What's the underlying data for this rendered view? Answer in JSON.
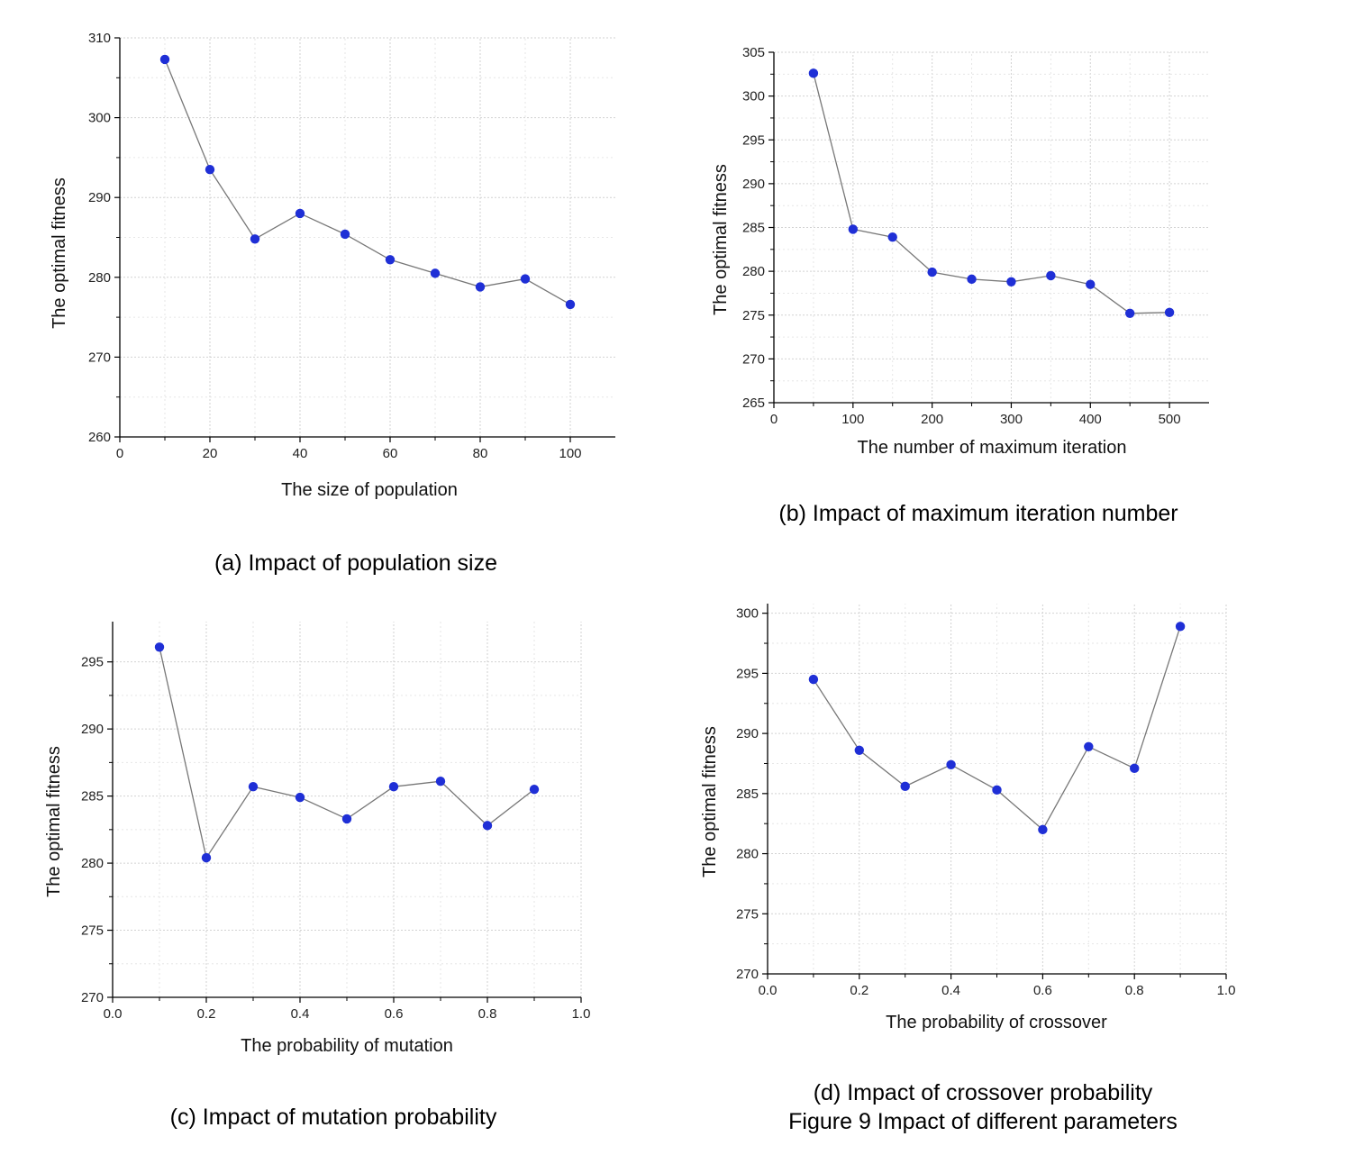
{
  "figure_caption": "Figure 9 Impact of different parameters",
  "chart_data": [
    {
      "id": "a",
      "type": "line",
      "caption": "(a) Impact of population size",
      "xlabel": "The size of population",
      "ylabel": "The optimal fitness",
      "xlim": [
        0,
        110
      ],
      "ylim": [
        260,
        310
      ],
      "xticks": [
        0,
        20,
        40,
        60,
        80,
        100
      ],
      "yticks": [
        260,
        270,
        280,
        290,
        300,
        310
      ],
      "grid": true,
      "series": [
        {
          "x": [
            10,
            20,
            30,
            40,
            50,
            60,
            70,
            80,
            90,
            100
          ],
          "y": [
            307.3,
            293.5,
            284.8,
            288.0,
            285.4,
            282.2,
            280.5,
            278.8,
            279.8,
            276.6
          ]
        }
      ]
    },
    {
      "id": "b",
      "type": "line",
      "caption": "(b) Impact of maximum iteration number",
      "xlabel": "The number of maximum iteration",
      "ylabel": "The optimal fitness",
      "xlim": [
        0,
        550
      ],
      "ylim": [
        265,
        305
      ],
      "xticks": [
        0,
        100,
        200,
        300,
        400,
        500
      ],
      "yticks": [
        265,
        270,
        275,
        280,
        285,
        290,
        295,
        300,
        305
      ],
      "grid": true,
      "series": [
        {
          "x": [
            50,
            100,
            150,
            200,
            250,
            300,
            350,
            400,
            450,
            500
          ],
          "y": [
            302.6,
            284.8,
            283.9,
            279.9,
            279.1,
            278.8,
            279.5,
            278.5,
            275.2,
            275.3
          ]
        }
      ]
    },
    {
      "id": "c",
      "type": "line",
      "caption": "(c) Impact of mutation probability",
      "xlabel": "The probability of mutation",
      "ylabel": "The optimal fitness",
      "xlim": [
        0,
        1.0
      ],
      "ylim": [
        270,
        298
      ],
      "xticks": [
        0.0,
        0.2,
        0.4,
        0.6,
        0.8,
        1.0
      ],
      "yticks": [
        270,
        275,
        280,
        285,
        290,
        295
      ],
      "grid": true,
      "series": [
        {
          "x": [
            0.1,
            0.2,
            0.3,
            0.4,
            0.5,
            0.6,
            0.7,
            0.8,
            0.9
          ],
          "y": [
            296.1,
            280.4,
            285.7,
            284.9,
            283.3,
            285.7,
            286.1,
            282.8,
            285.5
          ]
        }
      ]
    },
    {
      "id": "d",
      "type": "line",
      "caption": "(d) Impact of crossover probability",
      "xlabel": "The probability of crossover",
      "ylabel": "The optimal fitness",
      "xlim": [
        0,
        1.0
      ],
      "ylim": [
        270,
        300.8
      ],
      "xticks": [
        0.0,
        0.2,
        0.4,
        0.6,
        0.8,
        1.0
      ],
      "yticks": [
        270,
        275,
        280,
        285,
        290,
        295,
        300
      ],
      "grid": true,
      "series": [
        {
          "x": [
            0.1,
            0.2,
            0.3,
            0.4,
            0.5,
            0.6,
            0.7,
            0.8,
            0.9
          ],
          "y": [
            294.5,
            288.6,
            285.6,
            287.4,
            285.3,
            282.0,
            288.9,
            287.1,
            298.9
          ]
        }
      ]
    }
  ],
  "style": {
    "marker_color": "#1f2fd6",
    "line_color": "#777777",
    "grid_color": "#d2d2d2",
    "axis_color": "#000000"
  }
}
